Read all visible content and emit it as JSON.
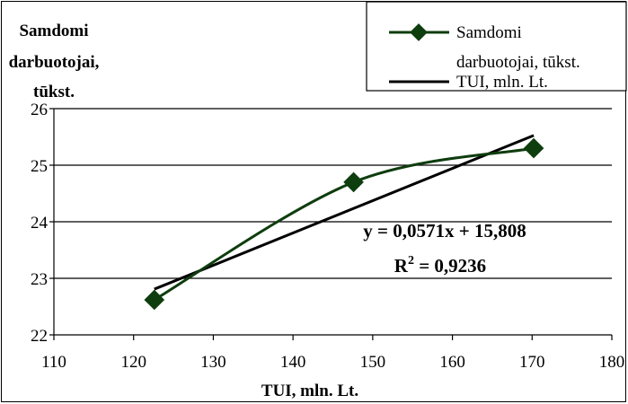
{
  "chart_data": {
    "type": "scatter",
    "ylabel_lines": [
      "Samdomi",
      "darbuotojai,",
      "tūkst."
    ],
    "xlabel": "TUI, mln. Lt.",
    "xlim": [
      110,
      180
    ],
    "ylim": [
      22,
      26
    ],
    "x_ticks": [
      110,
      120,
      130,
      140,
      150,
      160,
      170,
      180
    ],
    "y_ticks": [
      22,
      23,
      24,
      25,
      26
    ],
    "grid": "horizontal",
    "legend_position": "top-right",
    "series": [
      {
        "name_lines": [
          "Samdomi",
          "darbuotojai, tūkst."
        ],
        "style": "smooth-line-diamond-markers",
        "color": "#0e3d0e",
        "x": [
          122.6,
          147.6,
          170.2
        ],
        "y": [
          22.62,
          24.7,
          25.3
        ]
      },
      {
        "name_lines": [
          "TUI, mln. Lt."
        ],
        "style": "linear-trendline",
        "color": "#000000",
        "slope": 0.0571,
        "intercept": 15.808,
        "x_range": [
          122.6,
          170.2
        ]
      }
    ],
    "annotations": {
      "equation": "y = 0,0571x + 15,808",
      "r2_prefix": "R",
      "r2_sup": "2",
      "r2_value": " = 0,9236"
    }
  }
}
